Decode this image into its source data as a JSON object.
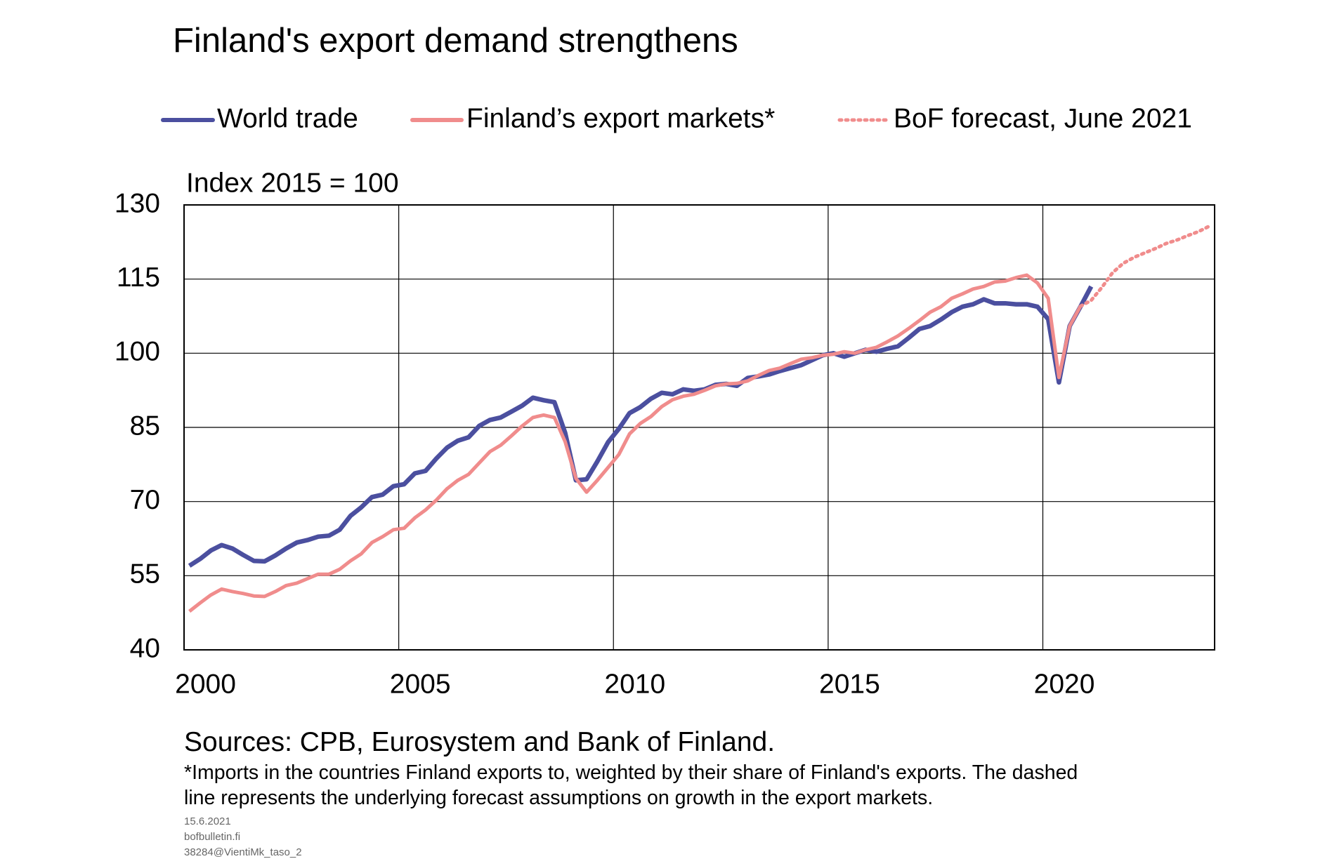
{
  "chart_data": {
    "type": "line",
    "title": "Finland's export demand strengthens",
    "y_label": "Index 2015 = 100",
    "sources": "Sources: CPB, Eurosystem and Bank of Finland.",
    "footnote": [
      "*Imports in the countries Finland exports to, weighted by their share of Finland's exports. The dashed",
      "line represents the underlying forecast assumptions on growth in the export markets."
    ],
    "footer": [
      "15.6.2021",
      "bofbulletin.fi",
      "38284@VientiMk_taso_2"
    ],
    "grid": true,
    "legend": "top",
    "xlim": [
      2000,
      2024
    ],
    "xticks": [
      2000,
      2005,
      2010,
      2015,
      2020
    ],
    "ylim": [
      40,
      130
    ],
    "yticks": [
      40,
      55,
      70,
      85,
      100,
      115,
      130
    ],
    "x": [
      2000.125,
      2000.375,
      2000.625,
      2000.875,
      2001.125,
      2001.375,
      2001.625,
      2001.875,
      2002.125,
      2002.375,
      2002.625,
      2002.875,
      2003.125,
      2003.375,
      2003.625,
      2003.875,
      2004.125,
      2004.375,
      2004.625,
      2004.875,
      2005.125,
      2005.375,
      2005.625,
      2005.875,
      2006.125,
      2006.375,
      2006.625,
      2006.875,
      2007.125,
      2007.375,
      2007.625,
      2007.875,
      2008.125,
      2008.375,
      2008.625,
      2008.875,
      2009.125,
      2009.375,
      2009.625,
      2009.875,
      2010.125,
      2010.375,
      2010.625,
      2010.875,
      2011.125,
      2011.375,
      2011.625,
      2011.875,
      2012.125,
      2012.375,
      2012.625,
      2012.875,
      2013.125,
      2013.375,
      2013.625,
      2013.875,
      2014.125,
      2014.375,
      2014.625,
      2014.875,
      2015.125,
      2015.375,
      2015.625,
      2015.875,
      2016.125,
      2016.375,
      2016.625,
      2016.875,
      2017.125,
      2017.375,
      2017.625,
      2017.875,
      2018.125,
      2018.375,
      2018.625,
      2018.875,
      2019.125,
      2019.375,
      2019.625,
      2019.875,
      2020.125,
      2020.375,
      2020.625,
      2020.875,
      2021.125,
      2021.375,
      2021.625,
      2021.875,
      2022.125,
      2022.375,
      2022.625,
      2022.875,
      2023.125,
      2023.375,
      2023.625,
      2023.875
    ],
    "series": [
      {
        "name": "World trade",
        "color": "#4b4f9f",
        "style": "solid",
        "values": [
          57.0,
          58.4,
          60.1,
          61.2,
          60.5,
          59.2,
          58.0,
          57.9,
          59.1,
          60.5,
          61.7,
          62.2,
          62.9,
          63.1,
          64.3,
          67.1,
          68.8,
          70.9,
          71.4,
          73.1,
          73.5,
          75.7,
          76.2,
          78.7,
          80.9,
          82.3,
          83.0,
          85.3,
          86.5,
          87.0,
          88.2,
          89.4,
          91.0,
          90.5,
          90.1,
          83.9,
          74.3,
          74.5,
          78.1,
          82.0,
          84.7,
          87.9,
          89.1,
          90.8,
          92.0,
          91.7,
          92.7,
          92.4,
          92.7,
          93.6,
          93.8,
          93.4,
          95.0,
          95.3,
          95.7,
          96.4,
          97.0,
          97.6,
          98.6,
          99.6,
          100.0,
          99.3,
          100.0,
          100.7,
          100.3,
          100.9,
          101.4,
          103.1,
          104.9,
          105.5,
          106.8,
          108.3,
          109.4,
          109.9,
          110.9,
          110.1,
          110.1,
          109.9,
          109.9,
          109.4,
          106.9,
          94.1,
          105.5,
          109.4,
          113.5,
          null,
          null,
          null,
          null,
          null,
          null,
          null,
          null,
          null,
          null,
          null
        ]
      },
      {
        "name": "Finland’s export markets*",
        "color": "#f08c8c",
        "style": "solid",
        "values": [
          47.8,
          49.5,
          51.1,
          52.3,
          51.8,
          51.4,
          50.9,
          50.8,
          51.8,
          53.0,
          53.5,
          54.4,
          55.3,
          55.3,
          56.3,
          58.0,
          59.4,
          61.7,
          62.9,
          64.3,
          64.6,
          66.7,
          68.3,
          70.3,
          72.6,
          74.3,
          75.5,
          77.8,
          80.1,
          81.4,
          83.3,
          85.3,
          87.0,
          87.5,
          87.0,
          82.1,
          74.7,
          71.9,
          74.3,
          76.9,
          79.5,
          83.7,
          85.8,
          87.2,
          89.2,
          90.6,
          91.3,
          91.7,
          92.5,
          93.4,
          93.8,
          93.9,
          94.4,
          95.5,
          96.5,
          97.0,
          97.9,
          98.8,
          99.1,
          99.6,
          99.8,
          100.3,
          100.0,
          100.7,
          101.2,
          102.3,
          103.5,
          105.0,
          106.6,
          108.3,
          109.4,
          111.1,
          112.0,
          113.0,
          113.5,
          114.4,
          114.6,
          115.3,
          115.8,
          114.2,
          111.1,
          95.1,
          105.5,
          109.5,
          null,
          null,
          null,
          null,
          null,
          null,
          null,
          null,
          null,
          null,
          null,
          null
        ]
      },
      {
        "name": "BoF forecast, June 2021",
        "color": "#f08c8c",
        "style": "dotted",
        "values": [
          null,
          null,
          null,
          null,
          null,
          null,
          null,
          null,
          null,
          null,
          null,
          null,
          null,
          null,
          null,
          null,
          null,
          null,
          null,
          null,
          null,
          null,
          null,
          null,
          null,
          null,
          null,
          null,
          null,
          null,
          null,
          null,
          null,
          null,
          null,
          null,
          null,
          null,
          null,
          null,
          null,
          null,
          null,
          null,
          null,
          null,
          null,
          null,
          null,
          null,
          null,
          null,
          null,
          null,
          null,
          null,
          null,
          null,
          null,
          null,
          null,
          null,
          null,
          null,
          null,
          null,
          null,
          null,
          null,
          null,
          null,
          null,
          null,
          null,
          null,
          null,
          null,
          null,
          null,
          null,
          null,
          null,
          null,
          109.5,
          110.7,
          113.3,
          116.3,
          118.2,
          119.4,
          120.3,
          121.2,
          122.2,
          122.9,
          123.8,
          124.6,
          125.7
        ]
      }
    ]
  }
}
